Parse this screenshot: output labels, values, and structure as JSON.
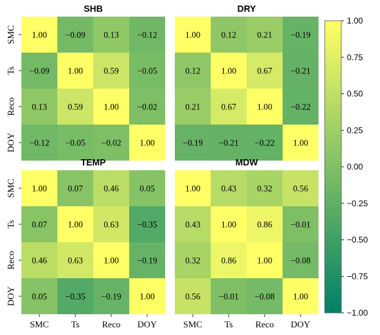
{
  "chart_data": {
    "type": "heatmap",
    "panels": [
      {
        "title": "SHB",
        "labels": [
          "SMC",
          "Ts",
          "Reco",
          "DOY"
        ],
        "matrix": [
          [
            1.0,
            -0.09,
            0.13,
            -0.12
          ],
          [
            -0.09,
            1.0,
            0.59,
            -0.05
          ],
          [
            0.13,
            0.59,
            1.0,
            -0.02
          ],
          [
            -0.12,
            -0.05,
            -0.02,
            1.0
          ]
        ]
      },
      {
        "title": "DRY",
        "labels": [
          "SMC",
          "Ts",
          "Reco",
          "DOY"
        ],
        "matrix": [
          [
            1.0,
            0.12,
            0.21,
            -0.19
          ],
          [
            0.12,
            1.0,
            0.67,
            -0.21
          ],
          [
            0.21,
            0.67,
            1.0,
            -0.22
          ],
          [
            -0.19,
            -0.21,
            -0.22,
            1.0
          ]
        ]
      },
      {
        "title": "TEMP",
        "labels": [
          "SMC",
          "Ts",
          "Reco",
          "DOY"
        ],
        "matrix": [
          [
            1.0,
            0.07,
            0.46,
            0.05
          ],
          [
            0.07,
            1.0,
            0.63,
            -0.35
          ],
          [
            0.46,
            0.63,
            1.0,
            -0.19
          ],
          [
            0.05,
            -0.35,
            -0.19,
            1.0
          ]
        ]
      },
      {
        "title": "MDW",
        "labels": [
          "SMC",
          "Ts",
          "Reco",
          "DOY"
        ],
        "matrix": [
          [
            1.0,
            0.43,
            0.32,
            0.56
          ],
          [
            0.43,
            1.0,
            0.86,
            -0.01
          ],
          [
            0.32,
            0.86,
            1.0,
            -0.08
          ],
          [
            0.56,
            -0.01,
            -0.08,
            1.0
          ]
        ]
      }
    ],
    "colorbar": {
      "range": [
        -1.0,
        1.0
      ],
      "ticks": [
        "1.00",
        "0.75",
        "0.50",
        "0.25",
        "0.00",
        "−0.25",
        "−0.50",
        "−0.75",
        "−1.00"
      ],
      "colormap": "summer (low #008066 to high #FFFF66)"
    },
    "legend": "right colorbar"
  }
}
